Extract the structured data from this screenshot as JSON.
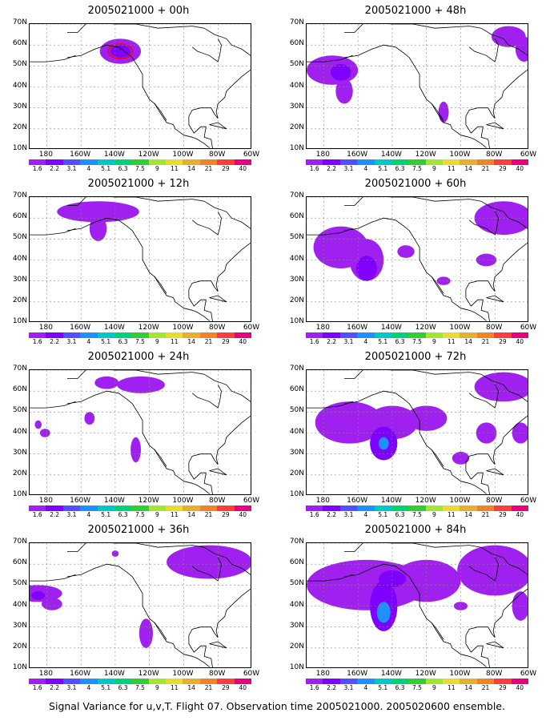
{
  "footer": "Signal Variance for u,v,T. Flight 07. Observation time 2005021000. 2005020600 ensemble.",
  "colors": {
    "levels": [
      "#a020f0",
      "#8000ff",
      "#5050ff",
      "#1e90ff",
      "#00c8c8",
      "#00d278",
      "#32cd32",
      "#a0e632",
      "#e6dc32",
      "#e6af2d",
      "#f08228",
      "#fa3c3c",
      "#e6007e"
    ],
    "contour_outline": "#ff0000",
    "coast": "#000000",
    "grid": "#888888"
  },
  "chart_data": {
    "type": "heatmap",
    "colorbar_labels": [
      "1.6",
      "2.2",
      "3.1",
      "4",
      "5.1",
      "6.3",
      "7.5",
      "9",
      "11",
      "14",
      "21",
      "29",
      "40"
    ],
    "x_ticks": [
      "180",
      "160W",
      "140W",
      "120W",
      "100W",
      "80W",
      "60W"
    ],
    "y_ticks": [
      "10N",
      "20N",
      "30N",
      "40N",
      "50N",
      "60N",
      "70N"
    ],
    "xlim_lon": [
      -190,
      -60
    ],
    "ylim_lat": [
      10,
      70
    ],
    "panels": [
      {
        "title": "2005021000 + 00h",
        "blobs": [
          {
            "lon": -137,
            "lat": 57,
            "rx": 12,
            "ry": 6,
            "level": 0
          },
          {
            "lon": -137,
            "lat": 57,
            "rx": 6,
            "ry": 3,
            "level": 1
          }
        ],
        "outline": {
          "lon": -137,
          "lat": 57,
          "rx": 7,
          "ry": 3.5
        }
      },
      {
        "title": "2005021000 + 12h",
        "blobs": [
          {
            "lon": -150,
            "lat": 63,
            "rx": 24,
            "ry": 5,
            "level": 0
          },
          {
            "lon": -150,
            "lat": 55,
            "rx": 5,
            "ry": 6,
            "level": 0
          }
        ]
      },
      {
        "title": "2005021000 + 24h",
        "blobs": [
          {
            "lon": -125,
            "lat": 63,
            "rx": 14,
            "ry": 4,
            "level": 0
          },
          {
            "lon": -145,
            "lat": 64,
            "rx": 7,
            "ry": 3,
            "level": 0
          },
          {
            "lon": -155,
            "lat": 47,
            "rx": 3,
            "ry": 3,
            "level": 0
          },
          {
            "lon": -128,
            "lat": 32,
            "rx": 3,
            "ry": 6,
            "level": 0
          },
          {
            "lon": -185,
            "lat": 44,
            "rx": 2,
            "ry": 2,
            "level": 0
          },
          {
            "lon": -181,
            "lat": 40,
            "rx": 3,
            "ry": 2,
            "level": 0
          }
        ]
      },
      {
        "title": "2005021000 + 36h",
        "blobs": [
          {
            "lon": -185,
            "lat": 46,
            "rx": 14,
            "ry": 4,
            "level": 0
          },
          {
            "lon": -177,
            "lat": 41,
            "rx": 6,
            "ry": 3,
            "level": 0
          },
          {
            "lon": -185,
            "lat": 45,
            "rx": 4,
            "ry": 2,
            "level": 1
          },
          {
            "lon": -85,
            "lat": 61,
            "rx": 25,
            "ry": 8,
            "level": 0
          },
          {
            "lon": -122,
            "lat": 27,
            "rx": 4,
            "ry": 7,
            "level": 0
          },
          {
            "lon": -140,
            "lat": 65,
            "rx": 2,
            "ry": 1.5,
            "level": 0
          }
        ]
      },
      {
        "title": "2005021000 + 48h",
        "blobs": [
          {
            "lon": -175,
            "lat": 48,
            "rx": 15,
            "ry": 7,
            "level": 0
          },
          {
            "lon": -168,
            "lat": 38,
            "rx": 5,
            "ry": 6,
            "level": 0
          },
          {
            "lon": -170,
            "lat": 47,
            "rx": 6,
            "ry": 4,
            "level": 1
          },
          {
            "lon": -110,
            "lat": 28,
            "rx": 3,
            "ry": 5,
            "level": 0
          },
          {
            "lon": -72,
            "lat": 64,
            "rx": 10,
            "ry": 5,
            "level": 0
          },
          {
            "lon": -63,
            "lat": 58,
            "rx": 5,
            "ry": 6,
            "level": 0
          }
        ]
      },
      {
        "title": "2005021000 + 60h",
        "blobs": [
          {
            "lon": -170,
            "lat": 46,
            "rx": 16,
            "ry": 10,
            "level": 0
          },
          {
            "lon": -155,
            "lat": 40,
            "rx": 10,
            "ry": 10,
            "level": 0
          },
          {
            "lon": -155,
            "lat": 36,
            "rx": 6,
            "ry": 6,
            "level": 1
          },
          {
            "lon": -132,
            "lat": 44,
            "rx": 5,
            "ry": 3,
            "level": 0
          },
          {
            "lon": -75,
            "lat": 60,
            "rx": 17,
            "ry": 8,
            "level": 0
          },
          {
            "lon": -85,
            "lat": 40,
            "rx": 6,
            "ry": 3,
            "level": 0
          },
          {
            "lon": -110,
            "lat": 30,
            "rx": 4,
            "ry": 2,
            "level": 0
          }
        ]
      },
      {
        "title": "2005021000 + 72h",
        "blobs": [
          {
            "lon": -165,
            "lat": 45,
            "rx": 20,
            "ry": 10,
            "level": 0
          },
          {
            "lon": -140,
            "lat": 45,
            "rx": 15,
            "ry": 8,
            "level": 0
          },
          {
            "lon": -120,
            "lat": 47,
            "rx": 12,
            "ry": 6,
            "level": 0
          },
          {
            "lon": -145,
            "lat": 35,
            "rx": 8,
            "ry": 8,
            "level": 1
          },
          {
            "lon": -145,
            "lat": 35,
            "rx": 3,
            "ry": 3,
            "level": 3
          },
          {
            "lon": -75,
            "lat": 62,
            "rx": 17,
            "ry": 7,
            "level": 0
          },
          {
            "lon": -85,
            "lat": 40,
            "rx": 6,
            "ry": 5,
            "level": 0
          },
          {
            "lon": -100,
            "lat": 28,
            "rx": 5,
            "ry": 3,
            "level": 0
          },
          {
            "lon": -65,
            "lat": 40,
            "rx": 5,
            "ry": 5,
            "level": 0
          }
        ]
      },
      {
        "title": "2005021000 + 84h",
        "blobs": [
          {
            "lon": -155,
            "lat": 50,
            "rx": 35,
            "ry": 12,
            "level": 0
          },
          {
            "lon": -120,
            "lat": 52,
            "rx": 20,
            "ry": 10,
            "level": 0
          },
          {
            "lon": -80,
            "lat": 57,
            "rx": 22,
            "ry": 12,
            "level": 0
          },
          {
            "lon": -145,
            "lat": 40,
            "rx": 8,
            "ry": 12,
            "level": 1
          },
          {
            "lon": -145,
            "lat": 37,
            "rx": 4,
            "ry": 5,
            "level": 3
          },
          {
            "lon": -140,
            "lat": 53,
            "rx": 8,
            "ry": 4,
            "level": 1
          },
          {
            "lon": -100,
            "lat": 40,
            "rx": 4,
            "ry": 2,
            "level": 0
          },
          {
            "lon": -65,
            "lat": 40,
            "rx": 5,
            "ry": 7,
            "level": 0
          }
        ]
      }
    ]
  }
}
